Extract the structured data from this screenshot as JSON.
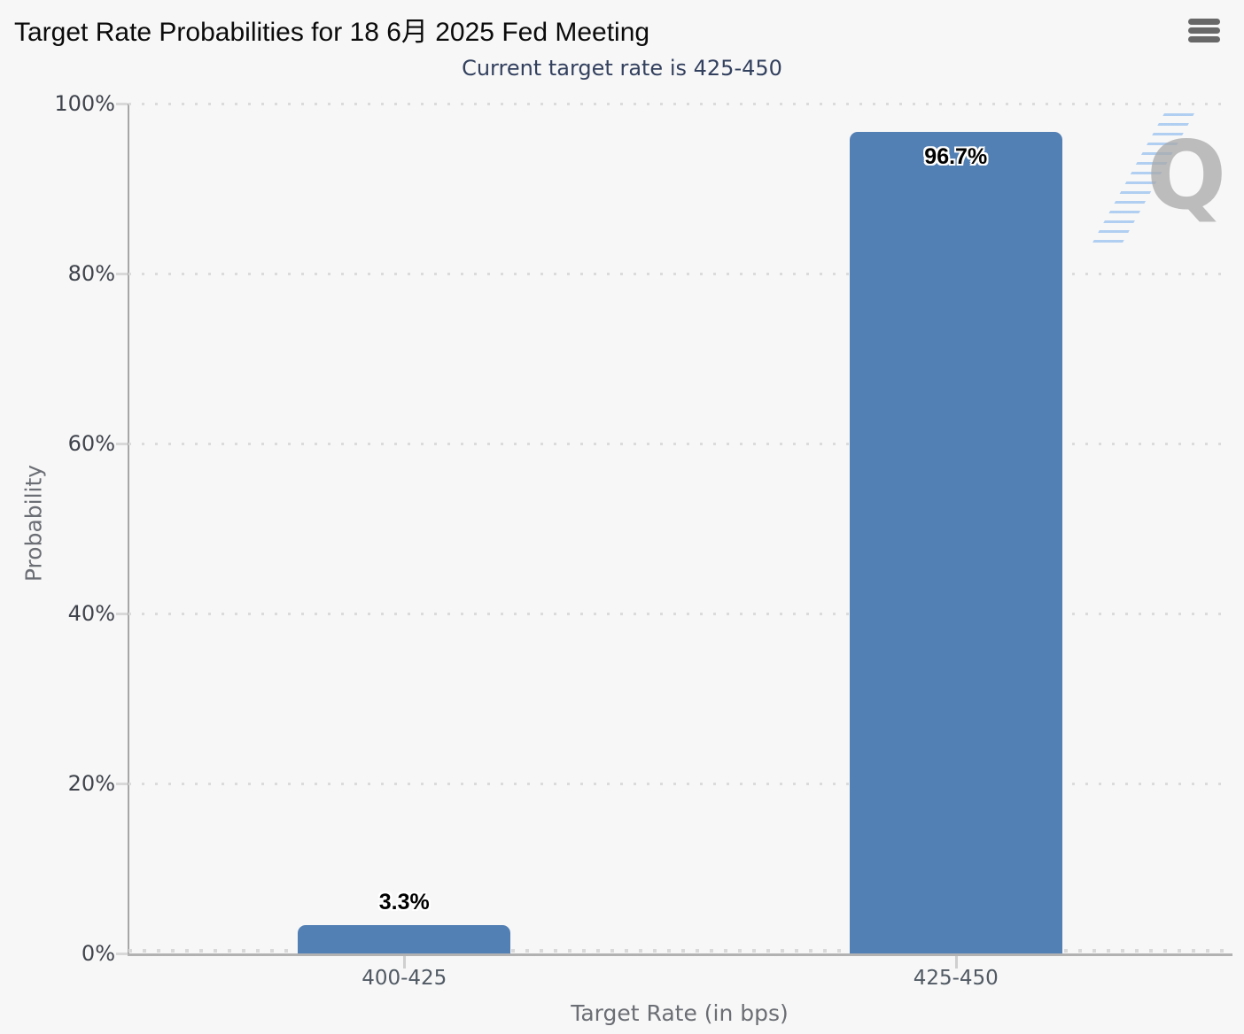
{
  "header": {
    "title": "Target Rate Probabilities for 18 6月 2025 Fed Meeting",
    "menu_icon": "hamburger-menu-icon"
  },
  "subtitle": "Current target rate is 425-450",
  "watermark": {
    "letter": "Q"
  },
  "colors": {
    "bar": "#527fb4",
    "background": "#f7f7f7",
    "subtitle_text": "#33415f",
    "axis_line": "#a6a6a6",
    "gridline": "#dbdbdb"
  },
  "chart_data": {
    "type": "bar",
    "title": "Target Rate Probabilities for 18 6月 2025 Fed Meeting",
    "subtitle": "Current target rate is 425-450",
    "categories": [
      "400-425",
      "425-450"
    ],
    "values": [
      3.3,
      96.7
    ],
    "value_labels": [
      "3.3%",
      "96.7%"
    ],
    "xlabel": "Target Rate (in bps)",
    "ylabel": "Probability",
    "ylim": [
      0,
      100
    ],
    "yticks": [
      0,
      20,
      40,
      60,
      80,
      100
    ],
    "ytick_labels": [
      "0%",
      "20%",
      "40%",
      "60%",
      "80%",
      "100%"
    ],
    "grid": "dotted-horizontal",
    "legend": "none",
    "bar_color": "#527fb4"
  }
}
